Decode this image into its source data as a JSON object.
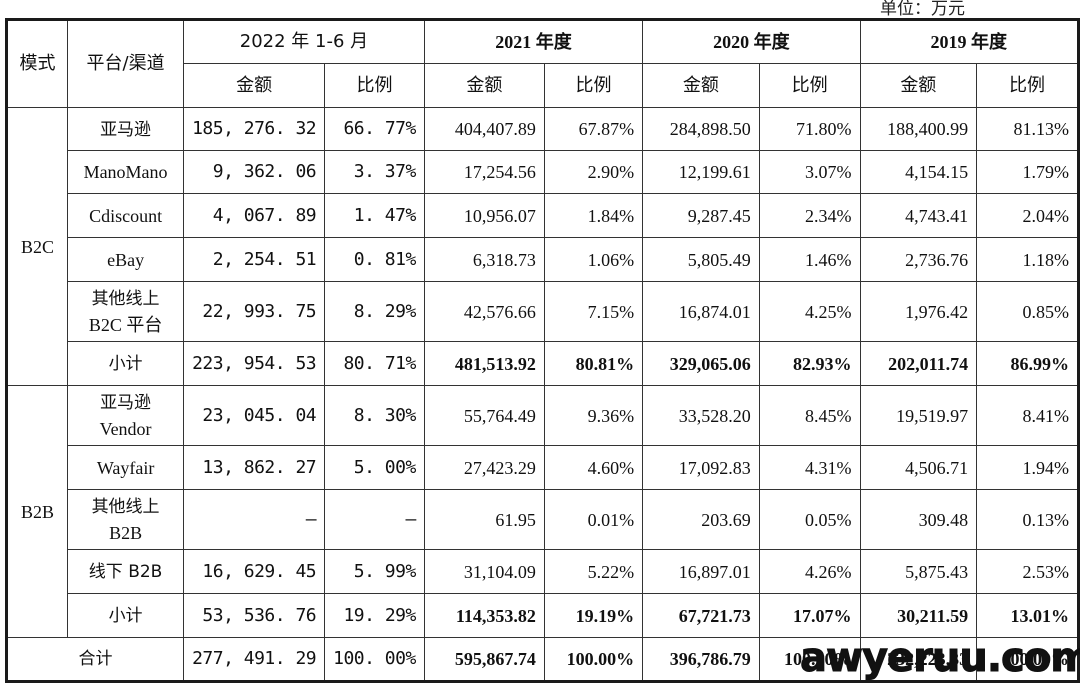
{
  "unit_label": "单位：万元",
  "header": {
    "mode": "模式",
    "platform": "平台/渠道",
    "periods": [
      "2022 年 1-6 月",
      "2021 年度",
      "2020 年度",
      "2019 年度"
    ],
    "amount": "金额",
    "ratio": "比例"
  },
  "groups": [
    {
      "mode": "B2C",
      "rows": [
        {
          "platform": "亚马逊",
          "values": [
            "185, 276. 32",
            "66. 77%",
            "404,407.89",
            "67.87%",
            "284,898.50",
            "71.80%",
            "188,400.99",
            "81.13%"
          ]
        },
        {
          "platform": "ManoMano",
          "values": [
            "9, 362. 06",
            "3. 37%",
            "17,254.56",
            "2.90%",
            "12,199.61",
            "3.07%",
            "4,154.15",
            "1.79%"
          ]
        },
        {
          "platform": "Cdiscount",
          "values": [
            "4, 067. 89",
            "1. 47%",
            "10,956.07",
            "1.84%",
            "9,287.45",
            "2.34%",
            "4,743.41",
            "2.04%"
          ]
        },
        {
          "platform": "eBay",
          "values": [
            "2, 254. 51",
            "0. 81%",
            "6,318.73",
            "1.06%",
            "5,805.49",
            "1.46%",
            "2,736.76",
            "1.18%"
          ]
        },
        {
          "platform_line1": "其他线上",
          "platform_line2": "B2C 平台",
          "values": [
            "22, 993. 75",
            "8. 29%",
            "42,576.66",
            "7.15%",
            "16,874.01",
            "4.25%",
            "1,976.42",
            "0.85%"
          ]
        },
        {
          "platform": "小计",
          "subtotal": true,
          "values": [
            "223, 954. 53",
            "80. 71%",
            "481,513.92",
            "80.81%",
            "329,065.06",
            "82.93%",
            "202,011.74",
            "86.99%"
          ]
        }
      ]
    },
    {
      "mode": "B2B",
      "rows": [
        {
          "platform_line1": "亚马逊",
          "platform_line2": "Vendor",
          "values": [
            "23, 045. 04",
            "8. 30%",
            "55,764.49",
            "9.36%",
            "33,528.20",
            "8.45%",
            "19,519.97",
            "8.41%"
          ]
        },
        {
          "platform": "Wayfair",
          "values": [
            "13, 862. 27",
            "5. 00%",
            "27,423.29",
            "4.60%",
            "17,092.83",
            "4.31%",
            "4,506.71",
            "1.94%"
          ]
        },
        {
          "platform_line1": "其他线上",
          "platform_line2": "B2B",
          "values": [
            "–",
            "–",
            "61.95",
            "0.01%",
            "203.69",
            "0.05%",
            "309.48",
            "0.13%"
          ]
        },
        {
          "platform": "线下 B2B",
          "values": [
            "16, 629. 45",
            "5. 99%",
            "31,104.09",
            "5.22%",
            "16,897.01",
            "4.26%",
            "5,875.43",
            "2.53%"
          ]
        },
        {
          "platform": "小计",
          "subtotal": true,
          "values": [
            "53, 536. 76",
            "19. 29%",
            "114,353.82",
            "19.19%",
            "67,721.73",
            "17.07%",
            "30,211.59",
            "13.01%"
          ]
        }
      ]
    }
  ],
  "total": {
    "label": "合计",
    "values": [
      "277, 491. 29",
      "100. 00%",
      "595,867.74",
      "100.00%",
      "396,786.79",
      "100.00%",
      "232,223.33",
      "100.00%"
    ]
  },
  "watermark": "awyeruu.com"
}
